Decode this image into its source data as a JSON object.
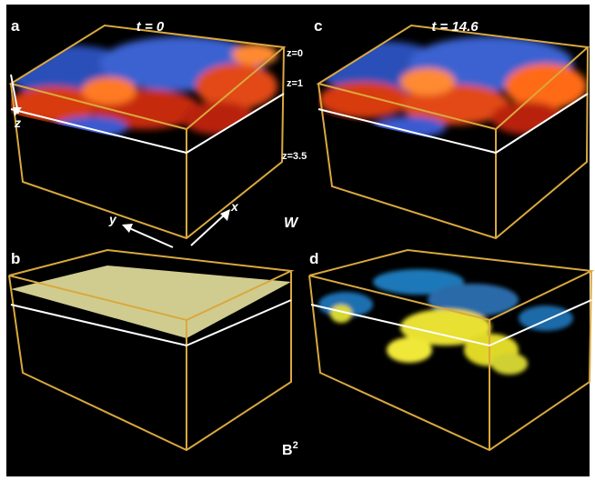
{
  "panels": [
    {
      "letter": "a",
      "time": "t = 0"
    },
    {
      "letter": "c",
      "time": "t = 14.6"
    },
    {
      "letter": "b"
    },
    {
      "letter": "d"
    }
  ],
  "depth_labels": [
    "z=0",
    "z=1",
    "z=3.5"
  ],
  "axes": {
    "z": "z",
    "y": "y",
    "x": "x"
  },
  "quantity_top": "W",
  "quantity_bottom": {
    "base": "B",
    "superscript": "2"
  }
}
